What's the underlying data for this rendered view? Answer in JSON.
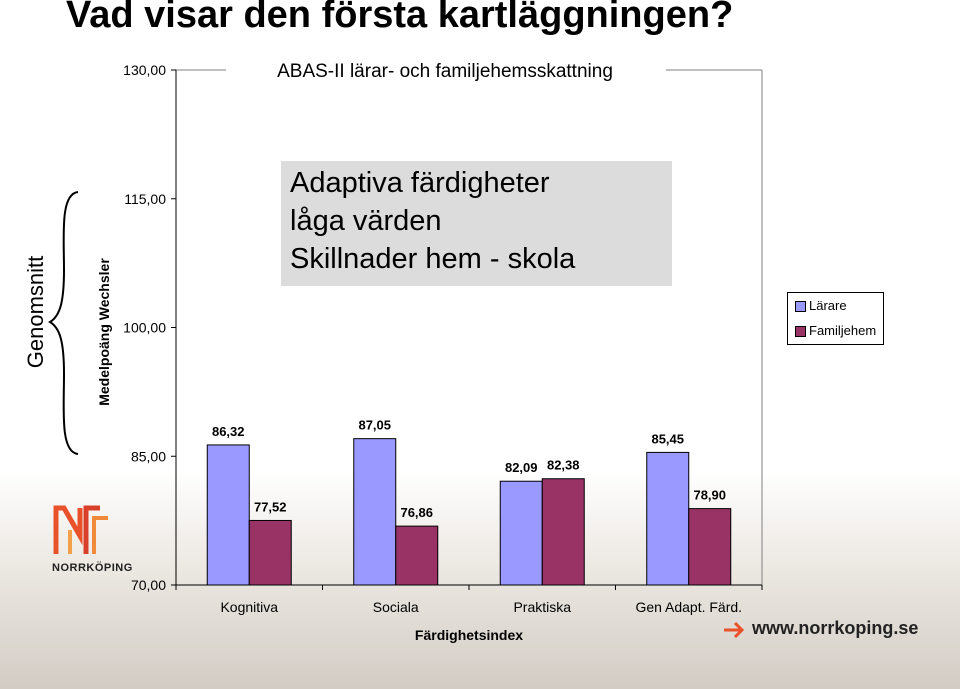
{
  "slide": {
    "title": "Vad visar den första kartläggningen?",
    "side_label": "Genomsnitt",
    "logo_text": "NORRKÖPING",
    "footer_url": "www.norrkoping.se"
  },
  "callout": {
    "lines": [
      "Adaptiva färdigheter",
      "låga värden",
      "Skillnader hem - skola"
    ]
  },
  "chart_data": {
    "type": "bar",
    "title": "ABAS-II lärar- och familjehemsskattning",
    "xlabel": "Färdighetsindex",
    "ylabel": "Medelpoäng Wechsler",
    "categories": [
      "Kognitiva",
      "Sociala",
      "Praktiska",
      "Gen Adapt. Färd."
    ],
    "series": [
      {
        "name": "Lärare",
        "values": [
          86.32,
          87.05,
          82.09,
          85.45
        ],
        "labels": [
          "86,32",
          "87,05",
          "82,09",
          "85,45"
        ]
      },
      {
        "name": "Familjehem",
        "values": [
          77.52,
          76.86,
          82.38,
          78.9
        ],
        "labels": [
          "77,52",
          "76,86",
          "82,38",
          "78,90"
        ]
      }
    ],
    "ylim": [
      70,
      130
    ],
    "yticks": [
      70,
      85,
      100,
      115,
      130
    ],
    "ytick_labels": [
      "70,00",
      "85,00",
      "100,00",
      "115,00",
      "130,00"
    ],
    "legend_position": "right",
    "grid": false
  },
  "colors": {
    "series": [
      "#9999ff",
      "#993366"
    ],
    "callout_bg": "#dcdcdc",
    "accent": "#e8512a"
  }
}
